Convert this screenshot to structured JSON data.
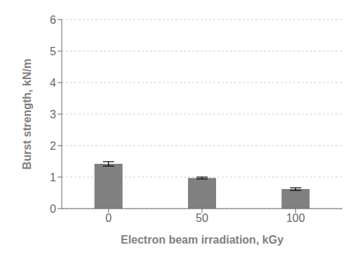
{
  "chart_data": {
    "type": "bar",
    "categories": [
      "0",
      "50",
      "100"
    ],
    "values": [
      1.42,
      0.97,
      0.62
    ],
    "errors": [
      0.07,
      0.03,
      0.04
    ],
    "color": "#808080",
    "xlabel": "Electron beam irradiation, kGy",
    "ylabel": "Burst strength, kN/m",
    "ylim": [
      0,
      6
    ],
    "yticks": [
      0,
      1,
      2,
      3,
      4,
      5,
      6
    ],
    "grid": true
  }
}
